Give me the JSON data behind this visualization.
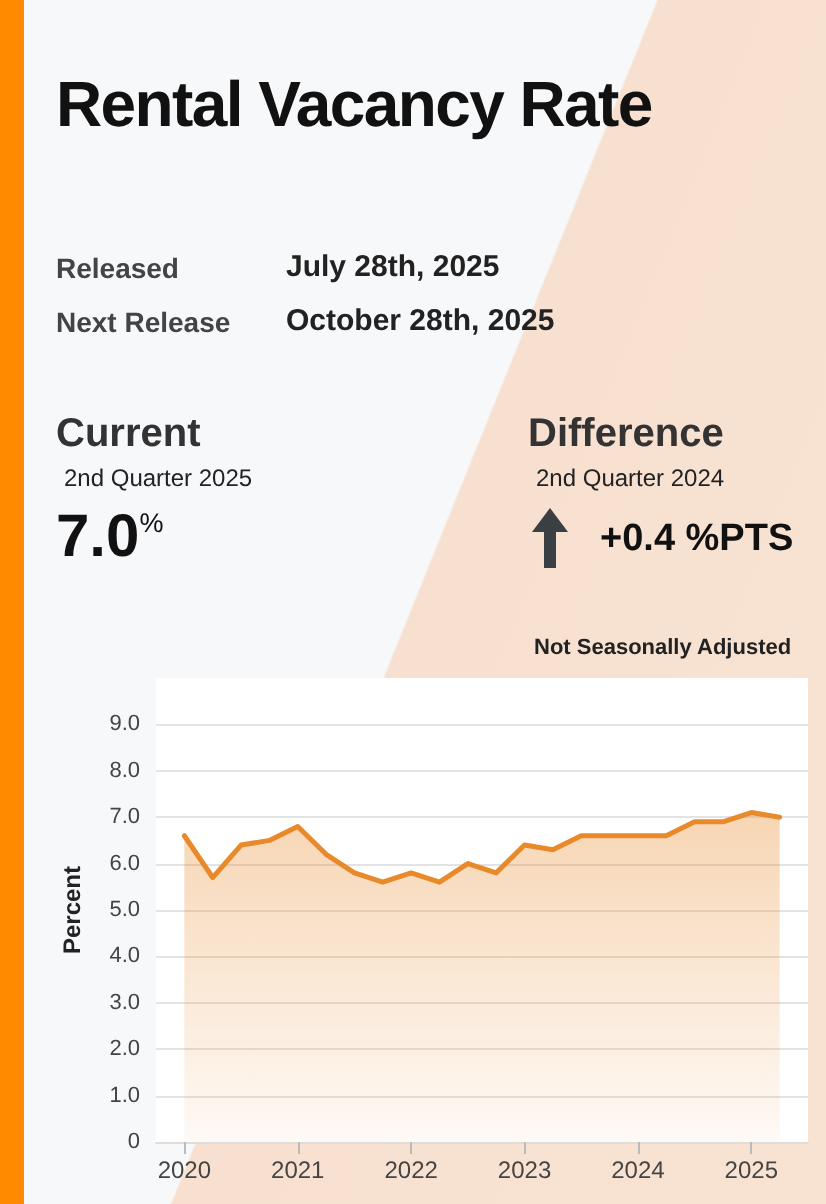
{
  "chart_data": {
    "type": "area",
    "title": "Rental Vacancy Rate",
    "subtitle": "Not Seasonally Adjusted",
    "ylabel": "Percent",
    "annotations": [
      "Released",
      "July 28th, 2025",
      "Next Release",
      "October 28th, 2025",
      "Current",
      "2nd Quarter 2025",
      "7.0$^{%}$",
      "Difference",
      "2nd Quarter 2024",
      "+0.4 %PTS"
    ],
    "x": [
      2020,
      2020.25,
      2020.5,
      2020.75,
      2021,
      2021.25,
      2021.5,
      2021.75,
      2022,
      2022.25,
      2022.5,
      2022.75,
      2023,
      2023.25,
      2023.5,
      2023.75,
      2024,
      2024.25,
      2024.5,
      2024.75,
      2025,
      2025.25
    ],
    "series": [
      {
        "color": "#e8892a",
        "values": [
          6.6,
          5.7,
          6.4,
          6.5,
          6.8,
          6.2,
          5.8,
          5.6,
          5.8,
          5.6,
          6.0,
          5.8,
          6.4,
          6.3,
          6.6,
          6.6,
          6.6,
          6.6,
          6.9,
          6.9,
          7.1,
          7.0
        ]
      }
    ],
    "xlim": [
      2019.75,
      2025.5
    ],
    "xticks": [
      2020,
      2021,
      2022,
      2023,
      2024,
      2025
    ],
    "ylim": [
      0,
      10
    ],
    "yticks": [
      0,
      {
        "value": 1,
        "label": "1.0"
      },
      {
        "value": 2,
        "label": "2.0"
      },
      {
        "value": 3,
        "label": "3.0"
      },
      {
        "value": 4,
        "label": "4.0"
      },
      {
        "value": 5,
        "label": "5.0"
      },
      {
        "value": 6,
        "label": "6.0"
      },
      {
        "value": 7,
        "label": "7.0"
      },
      {
        "value": 8,
        "label": "8.0"
      },
      {
        "value": 9,
        "label": "9.0"
      }
    ],
    "grid": "y",
    "marker": "none",
    "line_style": "solid"
  }
}
